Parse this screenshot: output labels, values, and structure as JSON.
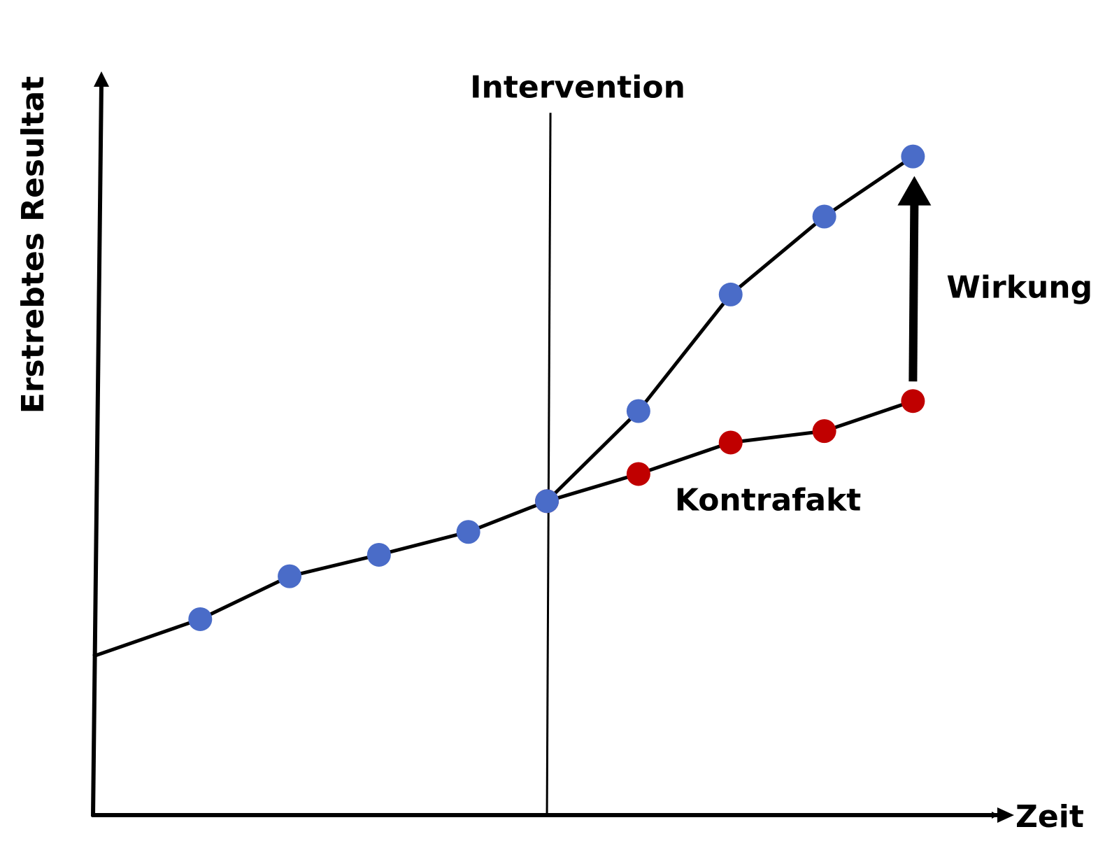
{
  "chart_data": {
    "type": "line",
    "xlabel": "Zeit",
    "ylabel": "Erstrebtes Resultat",
    "xlim": [
      0,
      126.5
    ],
    "ylim": [
      0,
      104
    ],
    "grid": false,
    "series": [
      {
        "name": "Kontrafakt",
        "color": "#c00000",
        "x": [
          63.5,
          76.3,
          89.2,
          102.3,
          114.7
        ],
        "values": [
          43.9,
          47.7,
          52.1,
          53.7,
          57.9
        ]
      },
      {
        "color": "#4a6cc8",
        "x": [
          0,
          15,
          27.5,
          40,
          52.5,
          63.5,
          76.3,
          89.2,
          102.3,
          114.7
        ],
        "values": [
          22.2,
          27.4,
          33.4,
          36.4,
          39.6,
          43.9,
          56.5,
          72.8,
          83.7,
          92.1
        ]
      }
    ],
    "vline": {
      "x": 63.5,
      "top": 98.2,
      "label": "Intervention"
    },
    "effect_label": "Wirkung"
  }
}
